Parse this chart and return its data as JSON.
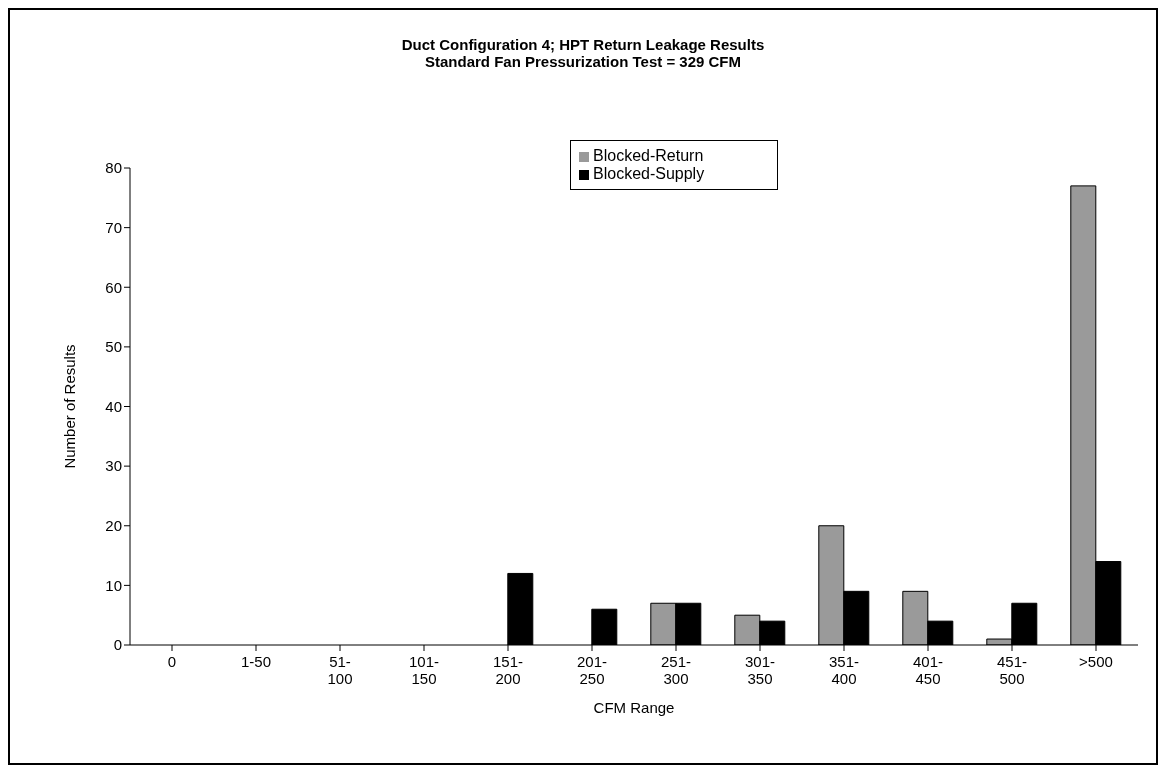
{
  "chart_data": {
    "type": "bar",
    "title": "Duct Configuration 4; HPT Return Leakage Results",
    "subtitle": "Standard Fan Pressurization Test = 329 CFM",
    "xlabel": "CFM Range",
    "ylabel": "Number of Results",
    "categories": [
      "0",
      "1-50",
      "51-\n100",
      "101-\n150",
      "151-\n200",
      "201-\n250",
      "251-\n300",
      "301-\n350",
      "351-\n400",
      "401-\n450",
      "451-\n500",
      ">500"
    ],
    "series": [
      {
        "name": "Blocked-Return",
        "color": "#9a9a9a",
        "values": [
          0,
          0,
          0,
          0,
          0,
          0,
          7,
          5,
          20,
          9,
          1,
          77
        ]
      },
      {
        "name": "Blocked-Supply",
        "color": "#000000",
        "values": [
          0,
          0,
          0,
          0,
          12,
          6,
          7,
          4,
          9,
          4,
          7,
          14
        ]
      }
    ],
    "ylim": [
      0,
      80
    ],
    "yticks": [
      0,
      10,
      20,
      30,
      40,
      50,
      60,
      70,
      80
    ],
    "grid": false,
    "legend": "top"
  }
}
